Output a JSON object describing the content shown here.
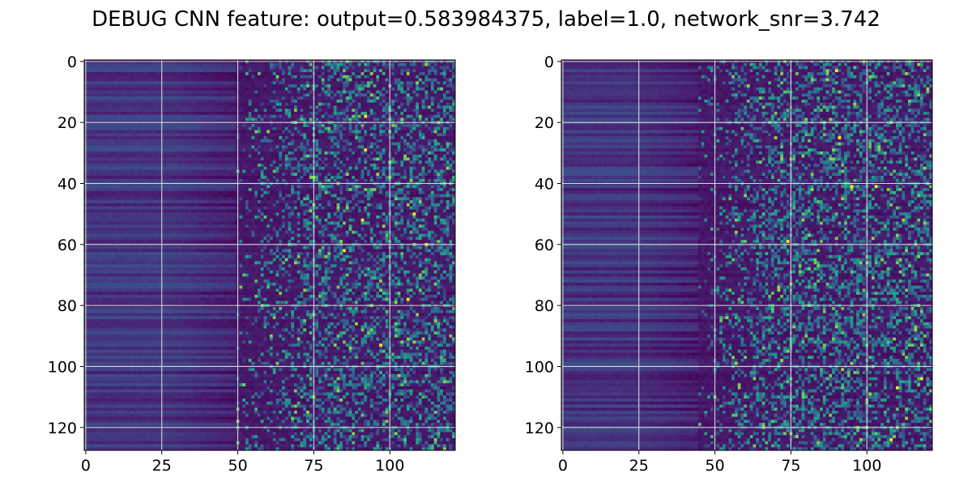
{
  "figure": {
    "title": "DEBUG CNN feature: output=0.583984375, label=1.0, network_snr=3.742"
  },
  "chart_data": [
    {
      "type": "heatmap",
      "title": "",
      "xlabel": "",
      "ylabel": "",
      "colormap": "viridis",
      "rows": 128,
      "columns": 122,
      "xlim": [
        -0.5,
        121.5
      ],
      "ylim": [
        127.5,
        -0.5
      ],
      "xticks": [
        0,
        25,
        50,
        75,
        100
      ],
      "xtick_labels": [
        "0",
        "25",
        "50",
        "75",
        "100"
      ],
      "yticks": [
        0,
        20,
        40,
        60,
        80,
        100,
        120
      ],
      "ytick_labels": [
        "0",
        "20",
        "40",
        "60",
        "80",
        "100",
        "120"
      ],
      "grid": true,
      "value_range": [
        0,
        1
      ],
      "pattern": {
        "low_activity_columns": [
          0,
          50
        ],
        "transition_columns": [
          50,
          75
        ],
        "noisy_columns": [
          75,
          121
        ],
        "hot_pixels": [
          [
            18,
            92
          ],
          [
            29,
            92
          ],
          [
            52,
            91
          ],
          [
            62,
            85
          ],
          [
            60,
            112
          ],
          [
            93,
            97
          ],
          [
            50,
            108
          ],
          [
            78,
            106
          ]
        ]
      }
    },
    {
      "type": "heatmap",
      "title": "",
      "xlabel": "",
      "ylabel": "",
      "colormap": "viridis",
      "rows": 128,
      "columns": 122,
      "xlim": [
        -0.5,
        121.5
      ],
      "ylim": [
        127.5,
        -0.5
      ],
      "xticks": [
        0,
        25,
        50,
        75,
        100
      ],
      "xtick_labels": [
        "0",
        "25",
        "50",
        "75",
        "100"
      ],
      "yticks": [
        0,
        20,
        40,
        60,
        80,
        100,
        120
      ],
      "ytick_labels": [
        "0",
        "20",
        "40",
        "60",
        "80",
        "100",
        "120"
      ],
      "grid": true,
      "value_range": [
        0,
        1
      ],
      "pattern": {
        "low_activity_columns": [
          0,
          45
        ],
        "transition_columns": [
          45,
          70
        ],
        "noisy_columns": [
          70,
          121
        ],
        "hot_pixels": [
          [
            3,
            90
          ],
          [
            25,
            91
          ],
          [
            41,
            95
          ],
          [
            41,
            103
          ],
          [
            59,
            74
          ],
          [
            104,
            118
          ],
          [
            107,
            110
          ],
          [
            124,
            108
          ]
        ]
      }
    }
  ]
}
